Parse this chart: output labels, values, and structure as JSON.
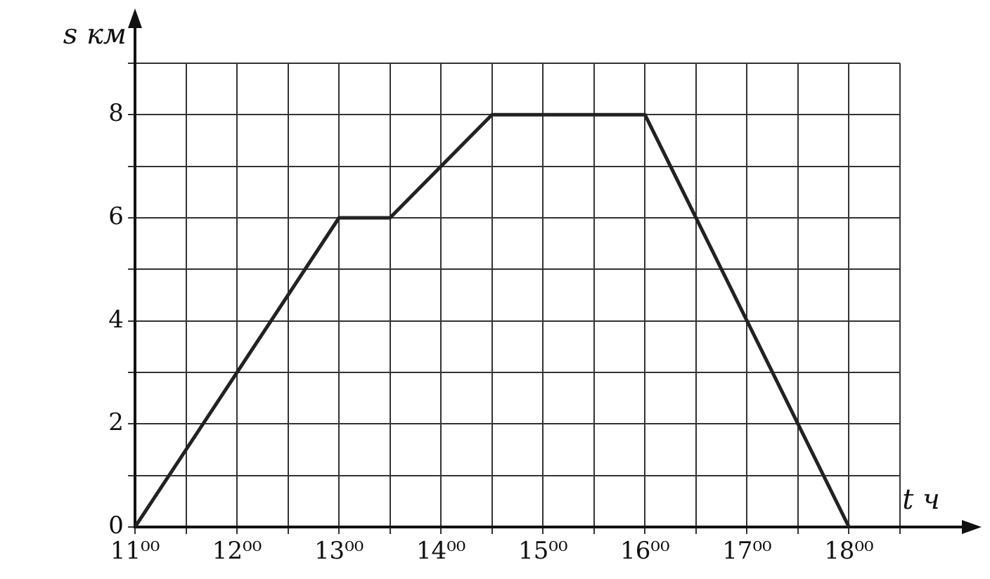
{
  "chart_data": {
    "type": "line",
    "xlabel": "t ч",
    "ylabel": "s км",
    "x": [
      11,
      13,
      13.5,
      14.5,
      16,
      18
    ],
    "series": [
      {
        "color": "#222222",
        "values": [
          0,
          6,
          6,
          8,
          8,
          0
        ]
      }
    ],
    "xlim": [
      11,
      18.5
    ],
    "ylim": [
      0,
      9
    ],
    "xticks": [
      {
        "value": 11,
        "label": "11⁰⁰"
      },
      {
        "value": 11.5,
        "label": null
      },
      {
        "value": 12,
        "label": "12⁰⁰"
      },
      {
        "value": 12.5,
        "label": null
      },
      {
        "value": 13,
        "label": "13⁰⁰"
      },
      {
        "value": 13.5,
        "label": null
      },
      {
        "value": 14,
        "label": "14⁰⁰"
      },
      {
        "value": 14.5,
        "label": null
      },
      {
        "value": 15,
        "label": "15⁰⁰"
      },
      {
        "value": 15.5,
        "label": null
      },
      {
        "value": 16,
        "label": "16⁰⁰"
      },
      {
        "value": 16.5,
        "label": null
      },
      {
        "value": 17,
        "label": "17⁰⁰"
      },
      {
        "value": 17.5,
        "label": null
      },
      {
        "value": 18,
        "label": "18⁰⁰"
      },
      {
        "value": 18.5,
        "label": null
      }
    ],
    "yticks": [
      0,
      {
        "value": 1,
        "label": null
      },
      2,
      {
        "value": 3,
        "label": null
      },
      4,
      {
        "value": 5,
        "label": null
      },
      6,
      {
        "value": 7,
        "label": null
      },
      8,
      {
        "value": 9,
        "label": null
      }
    ],
    "grid": true,
    "marker": "none",
    "line_style": "solid",
    "legend": false
  }
}
